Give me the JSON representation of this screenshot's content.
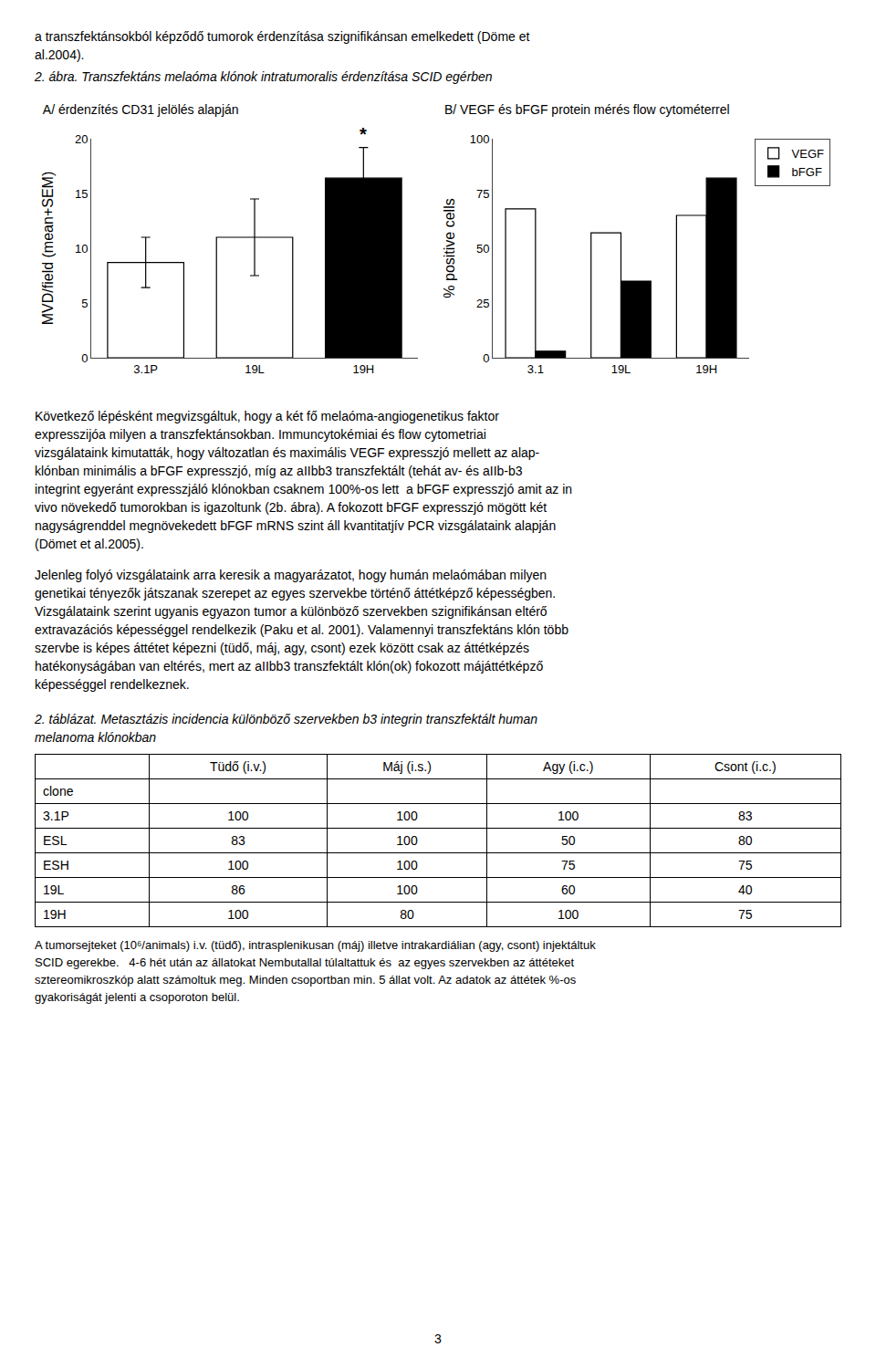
{
  "page_title": [
    "a transzfektánsokból képződő tumorok érdenzítása szignifikánsan emelkedett (Döme et",
    "al.2004)."
  ],
  "figure_title": "2. ábra. Transzfektáns melaóma klónok intratumoralis érdenzítása SCID egérben",
  "chart_data": [
    {
      "type": "bar",
      "title": "A/ érdenzítés CD31 jelölés alapján",
      "categories": [
        "3.1P",
        "19L",
        "19H"
      ],
      "values": [
        8.7,
        11.0,
        16.4
      ],
      "errors": [
        2.3,
        3.5,
        2.8
      ],
      "colors": [
        "white",
        "white",
        "black"
      ],
      "ylabel": "MVD/field (mean+SEM)",
      "ylim": [
        0,
        20
      ],
      "yticks": [
        0,
        5,
        10,
        15,
        20
      ],
      "grid": false,
      "annotations": [
        {
          "text": "*",
          "category": "19H"
        }
      ]
    },
    {
      "type": "bar",
      "title": "B/ VEGF és bFGF protein mérés flow cytométerrel",
      "categories": [
        "3.1",
        "19L",
        "19H"
      ],
      "series": [
        {
          "name": "VEGF",
          "color": "white",
          "values": [
            68,
            57,
            65
          ]
        },
        {
          "name": "bFGF",
          "color": "black",
          "values": [
            3,
            35,
            82
          ]
        }
      ],
      "ylabel": "% positive cells",
      "ylim": [
        0,
        100
      ],
      "yticks": [
        0,
        25,
        50,
        75,
        100
      ],
      "grid": false,
      "legend": "upper right"
    }
  ],
  "paragraphs": [
    "Következő lépésként megvizsgáltuk, hogy a két fő melaóma-angiogenetikus faktor\nexpresszijóa milyen a transzfektánsokban. Immuncytokémiai és flow cytometriai\nvizsgálataink kimutatták, hogy változatlan és maximális VEGF expresszjó mellett az alap-\nklónban minimális a bFGF expresszjó, míg az aIIbb3 transzfektált (tehát av- és aIIb-b3\nintegrint egyeránt expresszjáló klónokban csaknem 100%-os lett  a bFGF expresszjó amit az in\nvivo növekedő tumorokban is igazoltunk (2b. ábra). A fokozott bFGF expresszjó mögött két\nnagyságrenddel megnövekedett bFGF mRNS szint áll kvantitatjív PCR vizsgálataink alapján\n(Dömet et al.2005).",
    "Jelenleg folyó vizsgálataink arra keresik a magyarázatot, hogy humán melaómában milyen\ngenetikai tényezők játszanak szerepet az egyes szervekbe történő áttétképző képességben.\nVizsgálataink szerint ugyanis egyazon tumor a különböző szervekben szignifikánsan eltérő\nextravazációs képességgel rendelkezik (Paku et al. 2001). Valamennyi transzfektáns klón több\nszervbe is képes áttétet képezni (tüdő, máj, agy, csont) ezek között csak az áttétképzés\nhatékonyságában van eltérés, mert az aIIbb3 transzfektált klón(ok) fokozott májáttétképző\nképességgel rendelkeznek."
  ],
  "table": {
    "title": [
      "2. táblázat. Metasztázis incidencia különböző szervekben b3 integrin transzfektált human",
      "melanoma klónokban"
    ],
    "headers": [
      "",
      "Tüdő (i.v.)",
      "Máj (i.s.)",
      "Agy (i.c.)",
      "Csont (i.c.)"
    ],
    "rows": [
      [
        "clone",
        "",
        "",
        "",
        ""
      ],
      [
        "3.1P",
        "100",
        "100",
        "100",
        "83"
      ],
      [
        "ESL",
        "83",
        "100",
        "50",
        "80"
      ],
      [
        "ESH",
        "100",
        "100",
        "75",
        "75"
      ],
      [
        "19L",
        "86",
        "100",
        "60",
        "40"
      ],
      [
        "19H",
        "100",
        "80",
        "100",
        "75"
      ]
    ]
  },
  "footnote": "A tumorsejteket (10⁶/animals) i.v. (tüdő), intrasplenikusan (máj) illetve intrakardiálian (agy, csont) injektáltuk\nSCID egerekbe.   4-6 hét után az állatokat Nembutallal túlaltattuk és  az egyes szervekben az áttéteket\nsztereomikroszkóp alatt számoltuk meg. Minden csoportban min. 5 állat volt. Az adatok az áttétek %-os\ngyakoriságát jelenti a csoporoton belül.",
  "page_number": "3"
}
